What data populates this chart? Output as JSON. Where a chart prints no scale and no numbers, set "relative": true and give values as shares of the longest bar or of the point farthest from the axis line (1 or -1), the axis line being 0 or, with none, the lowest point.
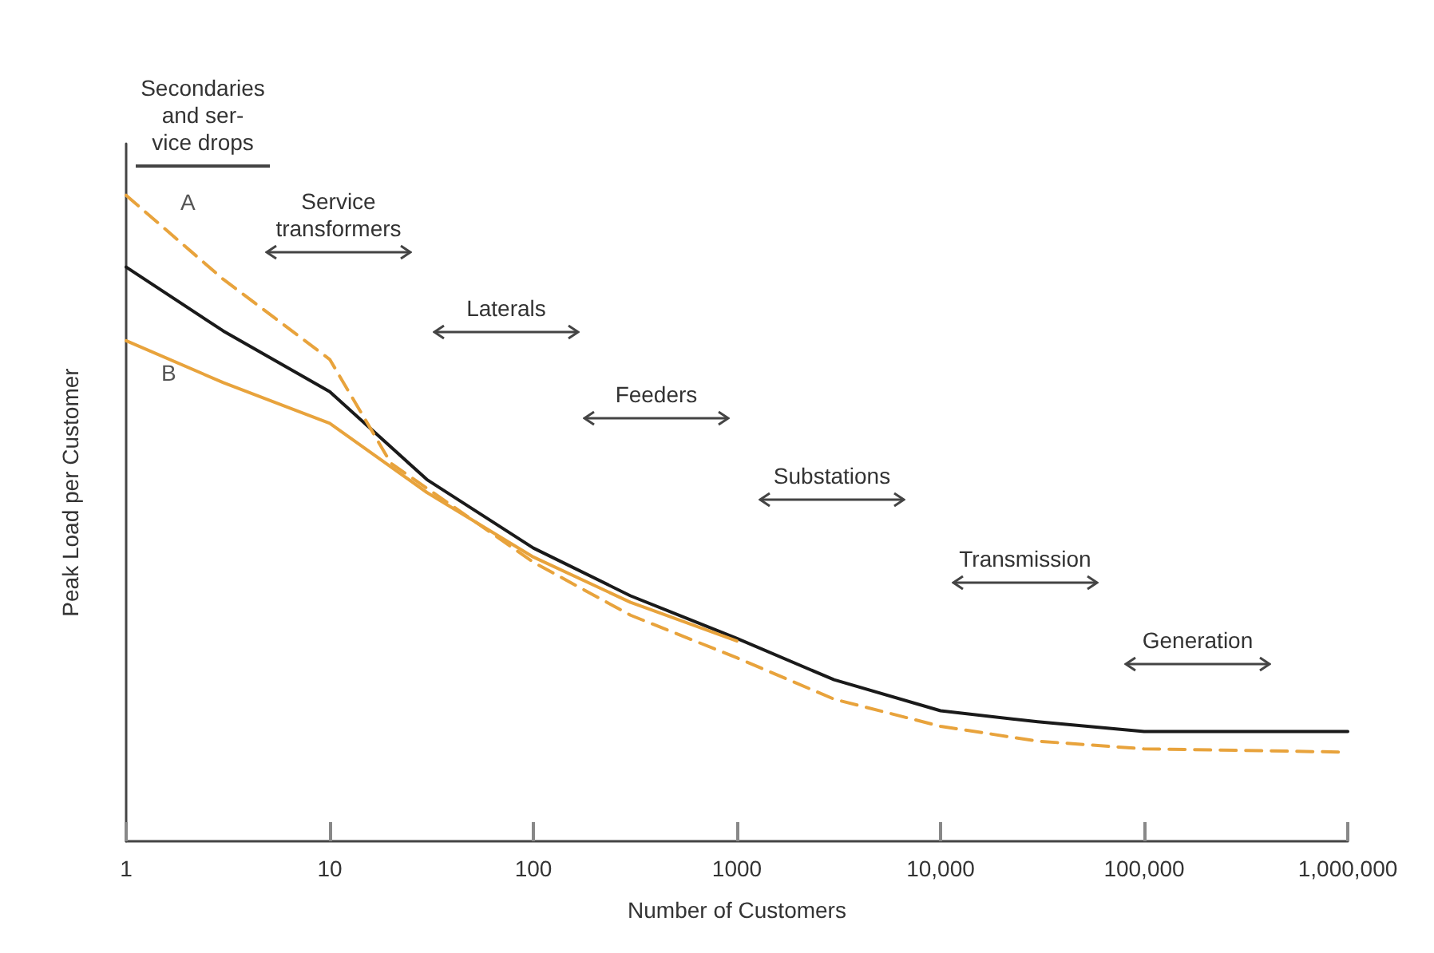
{
  "chart_data": {
    "type": "line",
    "relative": true,
    "xlabel": "Number of Customers",
    "ylabel": "Peak Load per Customer",
    "log": "x",
    "xlim": [
      1,
      1000000
    ],
    "xticks": [
      {
        "value": 1,
        "label": "1"
      },
      10,
      100,
      1000,
      {
        "value": 10000,
        "label": "10,000"
      },
      {
        "value": 100000,
        "label": "100,000"
      },
      {
        "value": 1000000,
        "label": "1,000,000"
      }
    ],
    "series": [
      {
        "color": "#1a1a1a",
        "line_style": "solid",
        "x": [
          1,
          3,
          10,
          30,
          100,
          300,
          1000,
          3000,
          10000,
          30000,
          100000,
          1000000
        ],
        "values": [
          0.889,
          0.79,
          0.696,
          0.56,
          0.454,
          0.38,
          0.314,
          0.25,
          0.202,
          0.185,
          0.17,
          0.17
        ]
      },
      {
        "name": "A",
        "color": "#e8a33c",
        "line_style": "dashed",
        "x": [
          1,
          3,
          10,
          20,
          100,
          300,
          1000,
          3000,
          10000,
          30000,
          100000,
          1000000
        ],
        "values": [
          1.0,
          0.87,
          0.746,
          0.585,
          0.432,
          0.35,
          0.284,
          0.22,
          0.178,
          0.155,
          0.143,
          0.138
        ]
      },
      {
        "name": "B",
        "color": "#e8a33c",
        "line_style": "solid",
        "x": [
          1,
          3,
          10,
          30,
          100,
          300,
          1000
        ],
        "values": [
          0.775,
          0.71,
          0.647,
          0.54,
          0.44,
          0.37,
          0.31
        ]
      }
    ],
    "annotations": [
      "Secondaries\nand ser-\nvice drops",
      "Service\ntransformers",
      "Laterals",
      "Feeders",
      "Substations",
      "Transmission",
      "Generation"
    ]
  }
}
